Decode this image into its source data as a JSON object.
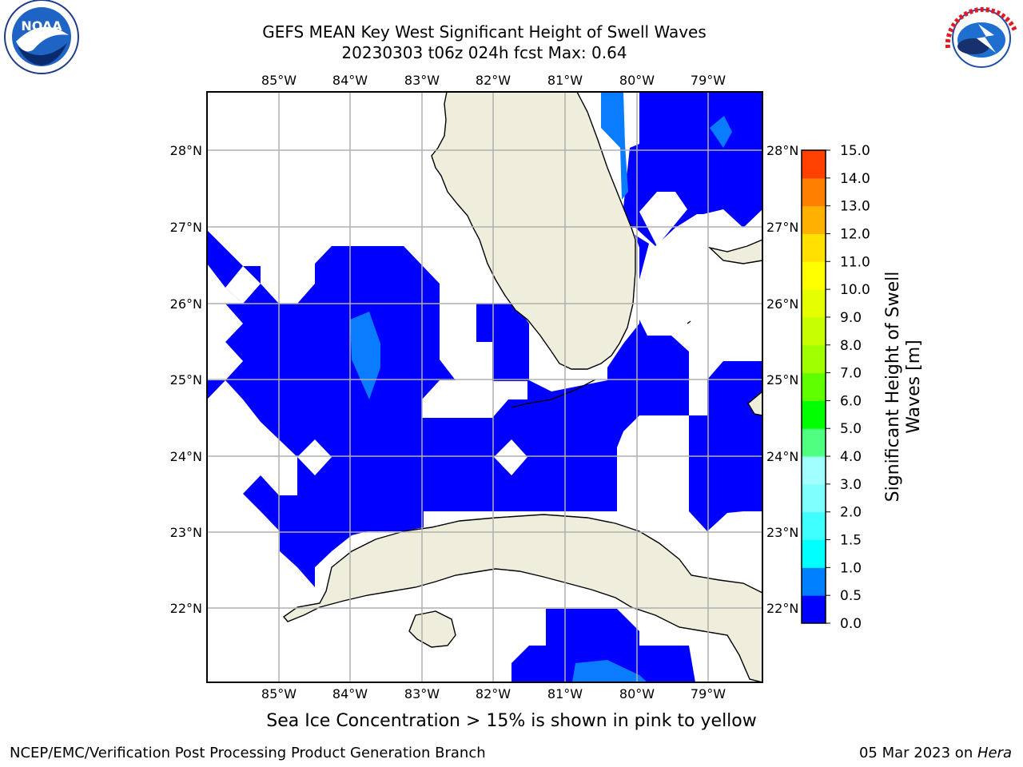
{
  "header": {
    "title_line1": "GEFS MEAN Key West Significant Height of Swell Waves",
    "title_line2": "20230303 t06z 024h fcst   Max: 0.64"
  },
  "logos": {
    "left": "NOAA",
    "left_ring_text": "NATIONAL OCEANIC AND ATMOSPHERIC ADMINISTRATION · U.S. DEPARTMENT OF COMMERCE",
    "right_ring_text": "NATIONAL WEATHER SERVICE"
  },
  "map": {
    "lon_labels": [
      "85°W",
      "84°W",
      "83°W",
      "82°W",
      "81°W",
      "80°W",
      "79°W"
    ],
    "lat_labels": [
      "28°N",
      "27°N",
      "26°N",
      "25°N",
      "24°N",
      "23°N",
      "22°N"
    ],
    "colors": {
      "land": "#efeedc",
      "swell_0_05": "#0000ff",
      "swell_05_10": "#0080ff"
    }
  },
  "colorbar": {
    "label_line1": "Significant Height of Swell",
    "label_line2": "Waves [m]",
    "ticks": [
      "0.0",
      "0.5",
      "1.0",
      "1.5",
      "2.0",
      "3.0",
      "4.0",
      "5.0",
      "6.0",
      "7.0",
      "8.0",
      "9.0",
      "10.0",
      "11.0",
      "12.0",
      "13.0",
      "14.0",
      "15.0"
    ],
    "colors": [
      "#0000ff",
      "#0080ff",
      "#00ffff",
      "#40ffff",
      "#80ffff",
      "#a0ffff",
      "#50ff80",
      "#00ff00",
      "#60ff00",
      "#a0ff00",
      "#c8ff00",
      "#e6ff00",
      "#ffff00",
      "#ffe000",
      "#ffb000",
      "#ff8000",
      "#ff4000",
      "#ff1000",
      "#ff0000"
    ]
  },
  "footer": {
    "note": "Sea Ice Concentration > 15% is shown in pink to yellow",
    "left": "NCEP/EMC/Verification Post Processing Product Generation Branch",
    "right_date": "05 Mar 2023 on ",
    "right_host": "Hera"
  }
}
